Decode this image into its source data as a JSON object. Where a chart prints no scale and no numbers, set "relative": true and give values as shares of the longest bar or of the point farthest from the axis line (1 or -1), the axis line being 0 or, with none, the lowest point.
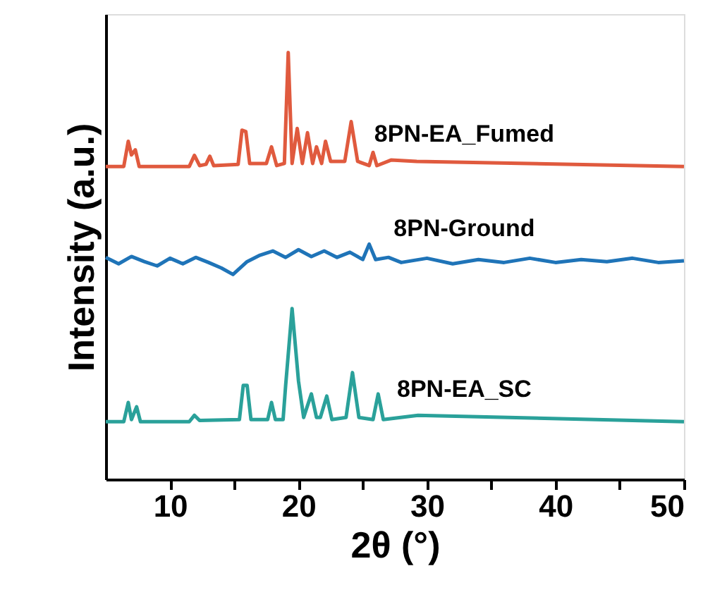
{
  "chart_data": {
    "type": "line",
    "relative": true,
    "xlabel": "2θ (°)",
    "ylabel": "Intensity (a.u.)",
    "xlim": [
      5,
      50
    ],
    "xticks": [
      10,
      {
        "value": 15,
        "label": null
      },
      20,
      {
        "value": 25,
        "label": null
      },
      30,
      {
        "value": 35,
        "label": null
      },
      40,
      {
        "value": 45,
        "label": null
      },
      50
    ],
    "grid": false,
    "legend": false,
    "marker": "none",
    "line_style": "solid",
    "series": [
      {
        "name": "8PN-EA_Fumed",
        "color": "#e05a3e",
        "x": [
          5,
          6.4,
          6.75,
          7.0,
          7.3,
          7.6,
          11.5,
          11.9,
          12.3,
          12.8,
          13.1,
          13.4,
          15.3,
          15.6,
          15.9,
          16.2,
          17.5,
          17.9,
          18.3,
          18.9,
          19.2,
          19.5,
          19.9,
          20.3,
          20.7,
          21.1,
          21.4,
          21.8,
          22.1,
          22.5,
          23.6,
          24.1,
          24.6,
          25.5,
          25.8,
          26.1,
          27.2,
          29.2,
          50
        ],
        "values": [
          0.733,
          0.733,
          0.792,
          0.76,
          0.772,
          0.733,
          0.733,
          0.759,
          0.735,
          0.738,
          0.757,
          0.735,
          0.738,
          0.818,
          0.815,
          0.74,
          0.74,
          0.779,
          0.735,
          0.74,
          1,
          0.74,
          0.822,
          0.74,
          0.812,
          0.74,
          0.779,
          0.74,
          0.792,
          0.745,
          0.745,
          0.838,
          0.745,
          0.735,
          0.766,
          0.735,
          0.748,
          0.745,
          0.733
        ]
      },
      {
        "name": "8PN-Ground",
        "color": "#1f74b8",
        "x": [
          5,
          6,
          7,
          8,
          9,
          10,
          11,
          12,
          13,
          14,
          14.9,
          16,
          17,
          18,
          19,
          20,
          21,
          22,
          23,
          24,
          25,
          25.5,
          26,
          27,
          28,
          30,
          32,
          34,
          36,
          38,
          40,
          42,
          44,
          46,
          48,
          50
        ],
        "values": [
          0.52,
          0.505,
          0.522,
          0.51,
          0.5,
          0.518,
          0.505,
          0.52,
          0.508,
          0.495,
          0.48,
          0.51,
          0.525,
          0.535,
          0.52,
          0.538,
          0.522,
          0.535,
          0.52,
          0.532,
          0.515,
          0.551,
          0.515,
          0.52,
          0.508,
          0.518,
          0.505,
          0.515,
          0.508,
          0.518,
          0.508,
          0.515,
          0.51,
          0.518,
          0.508,
          0.512
        ]
      },
      {
        "name": "8PN-EA_SC",
        "color": "#2aa19a",
        "x": [
          5,
          6.4,
          6.75,
          7.0,
          7.4,
          7.7,
          11.5,
          11.9,
          12.3,
          15.4,
          15.7,
          16.0,
          16.3,
          17.6,
          17.9,
          18.2,
          18.8,
          19.0,
          19.5,
          20.0,
          20.4,
          21.0,
          21.4,
          21.7,
          22.2,
          22.6,
          23.7,
          24.2,
          24.7,
          25.8,
          26.2,
          26.6,
          29.3,
          50
        ],
        "values": [
          0.135,
          0.135,
          0.18,
          0.14,
          0.17,
          0.135,
          0.135,
          0.15,
          0.138,
          0.14,
          0.22,
          0.22,
          0.14,
          0.14,
          0.18,
          0.14,
          0.14,
          0.22,
          0.4,
          0.23,
          0.145,
          0.2,
          0.145,
          0.145,
          0.195,
          0.14,
          0.145,
          0.25,
          0.145,
          0.14,
          0.2,
          0.14,
          0.15,
          0.135
        ]
      }
    ]
  }
}
